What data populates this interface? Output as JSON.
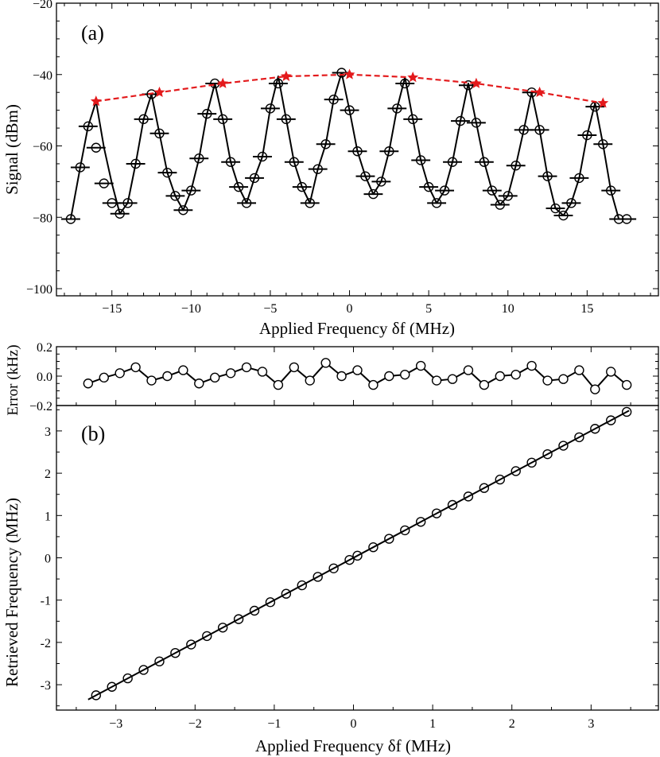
{
  "chart_data": [
    {
      "panel": "(a)",
      "type": "line",
      "xlabel": "Applied Frequency  δf (MHz)",
      "ylabel": "Signal  (dBm)",
      "xlim": [
        -18.5,
        19.5
      ],
      "ylim": [
        -102,
        -20
      ],
      "xticks": [
        -15,
        -10,
        -5,
        0,
        5,
        10,
        15
      ],
      "xtick_labels": [
        "−15",
        "−10",
        "−5",
        "0",
        "5",
        "10",
        "15"
      ],
      "yticks": [
        -100,
        -80,
        -60,
        -40,
        -20
      ],
      "ytick_labels": [
        "−100",
        "−80",
        "−60",
        "−40",
        "−20"
      ],
      "grid": false,
      "series": [
        {
          "style": "open circles with horizontal error bars, black",
          "x": [
            -17.6,
            -17,
            -16.5,
            -16,
            -15.5,
            -15,
            -14.5,
            -14,
            -13.5,
            -13,
            -12.5,
            -12,
            -11.5,
            -11,
            -10.5,
            -10,
            -9.5,
            -9,
            -8.5,
            -8,
            -7.5,
            -7,
            -6.5,
            -6,
            -5.5,
            -5,
            -4.5,
            -4,
            -3.5,
            -3,
            -2.5,
            -2,
            -1.5,
            -1,
            -0.5,
            0,
            0.5,
            1,
            1.5,
            2,
            2.5,
            3,
            3.5,
            4,
            4.5,
            5,
            5.5,
            6,
            6.5,
            7,
            7.5,
            8,
            8.5,
            9,
            9.5,
            10,
            10.5,
            11,
            11.5,
            12,
            12.5,
            13,
            13.5,
            14,
            14.5,
            15,
            15.5,
            16,
            16.5,
            17,
            17.5
          ],
          "y": [
            -80.5,
            -66,
            -54.5,
            -60.5,
            -70.5,
            -76,
            -79,
            -76,
            -65,
            -52.5,
            -45.5,
            -56.5,
            -67.5,
            -74,
            -78,
            -72.5,
            -63.5,
            -51,
            -42.5,
            -52.5,
            -64.5,
            -71.5,
            -76,
            -69,
            -63,
            -49.5,
            -42.5,
            -52.5,
            -64.5,
            -71.5,
            -76,
            -66.5,
            -59.5,
            -47,
            -39.5,
            -50,
            -61.5,
            -68.5,
            -73.5,
            -70,
            -61.5,
            -49.5,
            -42.5,
            -52.5,
            -64,
            -71.5,
            -76,
            -72.5,
            -64.5,
            -53,
            -43,
            -53.5,
            -64.5,
            -72.5,
            -76.5,
            -74,
            -65.5,
            -55.5,
            -45,
            -55.5,
            -68.5,
            -77.5,
            -79.5,
            -76,
            -69,
            -57,
            -49,
            -59.5,
            -72.5,
            -80.5,
            -80.5
          ],
          "xerr": 0.6
        },
        {
          "style": "solid black fitted curve through points",
          "x": [
            -17.6,
            -17,
            -16.5,
            -16,
            -15.5,
            -15,
            -14.5,
            -14,
            -13.5,
            -13,
            -12.5,
            -12,
            -11.5,
            -11,
            -10.5,
            -10,
            -9.5,
            -9,
            -8.5,
            -8,
            -7.5,
            -7,
            -6.5,
            -6,
            -5.5,
            -5,
            -4.5,
            -4,
            -3.5,
            -3,
            -2.5,
            -2,
            -1.5,
            -1,
            -0.5,
            0,
            0.5,
            1,
            1.5,
            2,
            2.5,
            3,
            3.5,
            4,
            4.5,
            5,
            5.5,
            6,
            6.5,
            7,
            7.5,
            8,
            8.5,
            9,
            9.5,
            10,
            10.5,
            11,
            11.5,
            12,
            12.5,
            13,
            13.5,
            14,
            14.5,
            15,
            15.5,
            16,
            16.5,
            17,
            17.5
          ],
          "y": [
            -80.5,
            -66,
            -54.5,
            -47.5,
            -60.5,
            -70.5,
            -79,
            -76,
            -65,
            -52.5,
            -45.5,
            -56.5,
            -67.5,
            -74,
            -78,
            -72.5,
            -63.5,
            -51,
            -42.5,
            -52.5,
            -64.5,
            -71.5,
            -76,
            -69,
            -63,
            -49.5,
            -40.5,
            -52.5,
            -64.5,
            -71.5,
            -76,
            -66.5,
            -59.5,
            -47,
            -39.5,
            -50,
            -61.5,
            -68.5,
            -73.5,
            -70,
            -61.5,
            -49.5,
            -40.8,
            -52.5,
            -64,
            -71.5,
            -76,
            -72.5,
            -64.5,
            -53,
            -42.5,
            -53.5,
            -64.5,
            -72.5,
            -76.5,
            -74,
            -65.5,
            -55.5,
            -45,
            -55.5,
            -68.5,
            -77.5,
            -79.5,
            -76,
            -69,
            -57,
            -48,
            -59.5,
            -72.5,
            -80.5,
            -80.5
          ]
        },
        {
          "style": "red dashed envelope with red star markers",
          "x": [
            -16,
            -12,
            -8,
            -4,
            0,
            4,
            8,
            12,
            16
          ],
          "y": [
            -47.5,
            -45,
            -42.5,
            -40.5,
            -40,
            -40.8,
            -42.5,
            -45,
            -48
          ]
        }
      ]
    },
    {
      "panel": "top of (b)",
      "type": "line",
      "ylabel": "Error (kHz)",
      "ylim": [
        -0.2,
        0.2
      ],
      "yticks": [
        -0.2,
        0.0,
        0.2
      ],
      "ytick_labels": [
        "−0.2",
        "0.0",
        "0.2"
      ],
      "grid": false,
      "series": [
        {
          "style": "open circles joined by solid black line",
          "x": [
            -3.35,
            -3.15,
            -2.95,
            -2.75,
            -2.55,
            -2.35,
            -2.15,
            -1.95,
            -1.75,
            -1.55,
            -1.35,
            -1.15,
            -0.95,
            -0.75,
            -0.55,
            -0.35,
            -0.15,
            0.05,
            0.25,
            0.45,
            0.65,
            0.85,
            1.05,
            1.25,
            1.45,
            1.65,
            1.85,
            2.05,
            2.25,
            2.45,
            2.65,
            2.85,
            3.05,
            3.25,
            3.45
          ],
          "y": [
            -0.05,
            -0.01,
            0.02,
            0.06,
            -0.03,
            0.0,
            0.04,
            -0.05,
            -0.01,
            0.02,
            0.06,
            0.03,
            -0.06,
            0.06,
            -0.03,
            0.09,
            0.0,
            0.04,
            -0.06,
            0.0,
            0.01,
            0.07,
            -0.03,
            -0.02,
            0.04,
            -0.06,
            0.0,
            0.01,
            0.07,
            -0.03,
            -0.02,
            0.04,
            -0.09,
            0.03,
            -0.06
          ]
        }
      ]
    },
    {
      "panel": "(b)",
      "type": "scatter",
      "xlabel": "Applied Frequency  δf (MHz)",
      "ylabel": "Retrieved Frequency  (MHz)",
      "xlim": [
        -3.75,
        3.85
      ],
      "ylim": [
        -3.6,
        3.6
      ],
      "xticks": [
        -3,
        -2,
        -1,
        0,
        1,
        2,
        3
      ],
      "xtick_labels": [
        "−3",
        "−2",
        "−1",
        "0",
        "1",
        "2",
        "3"
      ],
      "yticks": [
        -3,
        -2,
        -1,
        0,
        1,
        2,
        3
      ],
      "ytick_labels": [
        "-3",
        "-2",
        "-1",
        "0",
        "1",
        "2",
        "3"
      ],
      "grid": false,
      "series": [
        {
          "style": "open circles",
          "x": [
            -3.25,
            -3.05,
            -2.85,
            -2.65,
            -2.45,
            -2.25,
            -2.05,
            -1.85,
            -1.65,
            -1.45,
            -1.25,
            -1.05,
            -0.85,
            -0.65,
            -0.45,
            -0.25,
            -0.05,
            0.05,
            0.25,
            0.45,
            0.65,
            0.85,
            1.05,
            1.25,
            1.45,
            1.65,
            1.85,
            2.05,
            2.25,
            2.45,
            2.65,
            2.85,
            3.05,
            3.25,
            3.45
          ],
          "y": [
            -3.25,
            -3.05,
            -2.85,
            -2.65,
            -2.45,
            -2.25,
            -2.05,
            -1.85,
            -1.65,
            -1.45,
            -1.25,
            -1.05,
            -0.85,
            -0.65,
            -0.45,
            -0.25,
            -0.05,
            0.05,
            0.25,
            0.45,
            0.65,
            0.85,
            1.05,
            1.25,
            1.45,
            1.65,
            1.85,
            2.05,
            2.25,
            2.45,
            2.65,
            2.85,
            3.05,
            3.25,
            3.45
          ]
        },
        {
          "style": "solid black fitted line",
          "x": [
            -3.35,
            3.48
          ],
          "y": [
            -3.35,
            3.48
          ]
        }
      ]
    }
  ]
}
